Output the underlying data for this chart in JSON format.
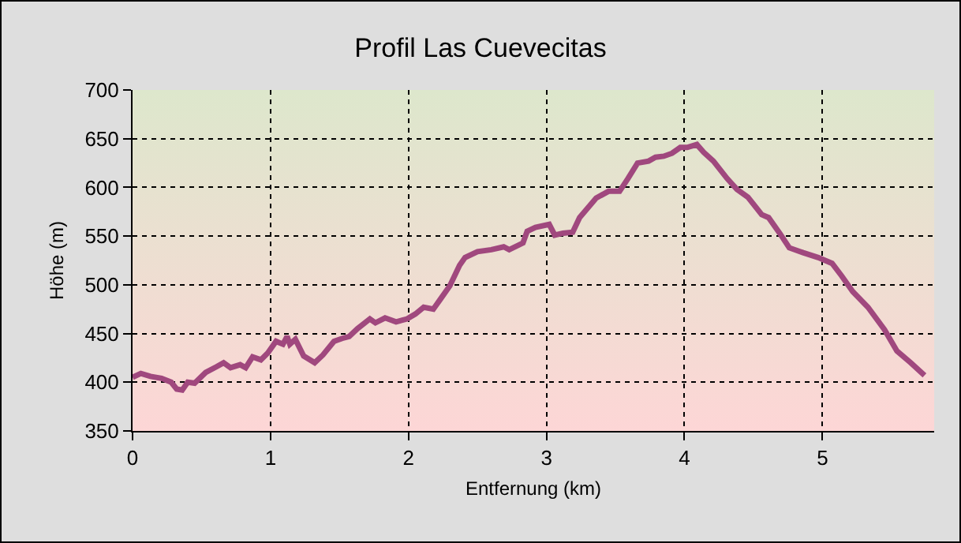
{
  "chart_data": {
    "type": "line",
    "title": "Profil Las Cuevecitas",
    "xlabel": "Entfernung (km)",
    "ylabel": "Höhe (m)",
    "x": [
      0,
      0.06,
      0.13,
      0.21,
      0.28,
      0.32,
      0.36,
      0.4,
      0.45,
      0.53,
      0.61,
      0.66,
      0.71,
      0.78,
      0.82,
      0.87,
      0.93,
      0.98,
      1.04,
      1.09,
      1.12,
      1.14,
      1.18,
      1.24,
      1.32,
      1.38,
      1.46,
      1.52,
      1.57,
      1.63,
      1.72,
      1.76,
      1.83,
      1.91,
      1.99,
      2.05,
      2.11,
      2.18,
      2.23,
      2.3,
      2.37,
      2.41,
      2.5,
      2.6,
      2.69,
      2.73,
      2.83,
      2.86,
      2.92,
      3.02,
      3.06,
      3.12,
      3.19,
      3.24,
      3.36,
      3.45,
      3.53,
      3.59,
      3.66,
      3.74,
      3.79,
      3.85,
      3.91,
      3.97,
      4.02,
      4.09,
      4.14,
      4.21,
      4.31,
      4.38,
      4.46,
      4.56,
      4.61,
      4.69,
      4.76,
      4.86,
      4.97,
      5.07,
      5.14,
      5.22,
      5.33,
      5.45,
      5.54,
      5.64,
      5.74
    ],
    "series": [
      {
        "color": "#a0487e",
        "values": [
          405,
          409,
          406,
          404,
          400,
          393,
          392,
          400,
          399,
          410,
          416,
          420,
          415,
          418,
          415,
          426,
          423,
          430,
          442,
          439,
          447,
          439,
          444,
          427,
          420,
          428,
          442,
          445,
          447,
          455,
          465,
          461,
          466,
          462,
          465,
          470,
          477,
          475,
          485,
          499,
          520,
          528,
          534,
          536,
          539,
          536,
          543,
          555,
          559,
          562,
          551,
          553,
          554,
          569,
          589,
          596,
          596,
          609,
          625,
          627,
          631,
          632,
          635,
          641,
          641,
          644,
          636,
          627,
          609,
          598,
          590,
          572,
          569,
          553,
          538,
          533,
          528,
          522,
          509,
          493,
          477,
          454,
          432,
          420,
          407
        ]
      }
    ],
    "xlim": [
      0,
      5.81
    ],
    "xticks": [
      0,
      1,
      2,
      3,
      4,
      5
    ],
    "ylim": [
      350,
      700
    ],
    "yticks": [
      350,
      400,
      450,
      500,
      550,
      600,
      650,
      700
    ],
    "grid": true,
    "marker": "none",
    "line_style": "solid"
  }
}
